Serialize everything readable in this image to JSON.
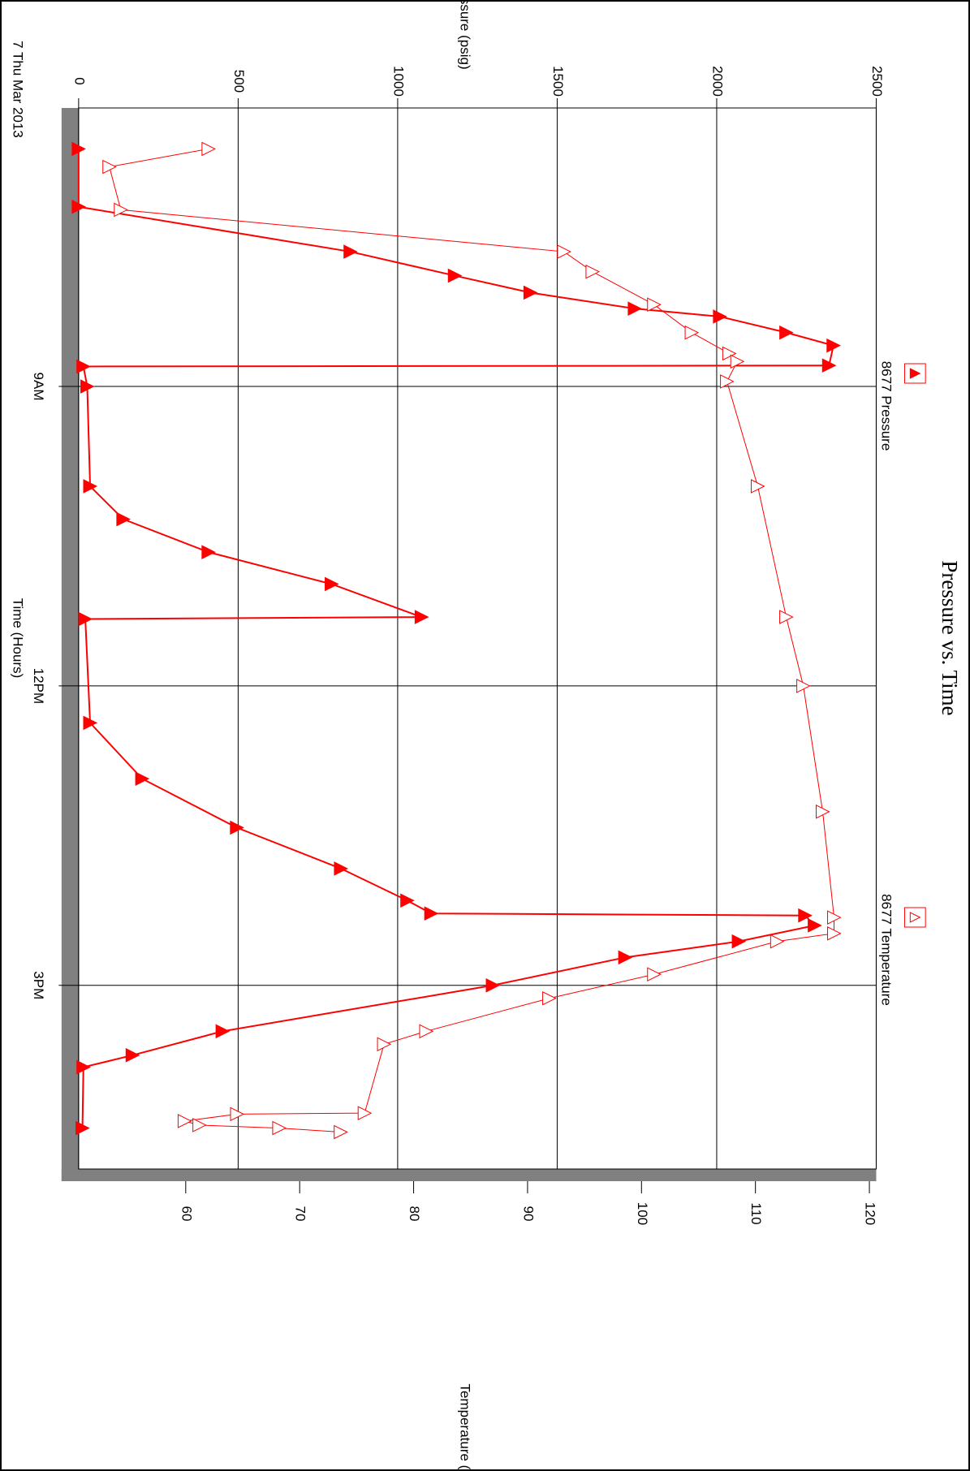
{
  "chart_data": {
    "type": "line",
    "title": "Pressure vs. Time",
    "date_label": "7 Thu Mar 2013",
    "x_label": "Time (Hours)",
    "y_label": "Pressure (psig)",
    "y2_label": "Temperature (deg F)",
    "xlim": [
      6.21,
      16.84
    ],
    "xticks": [
      {
        "value": 9,
        "label": "9AM"
      },
      {
        "value": 12,
        "label": "12PM"
      },
      {
        "value": 15,
        "label": "3PM"
      }
    ],
    "ylim": [
      0,
      2500
    ],
    "yticks": [
      0,
      500,
      1000,
      1500,
      2000,
      2500
    ],
    "y2lim": [
      50.6,
      120.6
    ],
    "y2ticks": [
      60,
      70,
      80,
      90,
      100,
      110,
      120
    ],
    "grid": true,
    "series": [
      {
        "name": "8677 Pressure",
        "color": "#ff0000",
        "filled": true,
        "x": [
          6.62,
          7.2,
          7.65,
          7.89,
          8.06,
          8.22,
          8.3,
          8.46,
          8.59,
          8.79,
          8.8,
          9.0,
          10.0,
          10.33,
          10.66,
          10.98,
          11.31,
          11.33,
          12.37,
          12.93,
          13.42,
          13.83,
          14.15,
          14.28,
          14.3,
          14.4,
          14.56,
          14.72,
          15.0,
          15.46,
          15.7,
          15.82,
          16.43
        ],
        "values": [
          0,
          0,
          852,
          1179,
          1416,
          1743,
          2010,
          2218,
          2366,
          2352,
          15,
          27,
          36,
          140,
          407,
          793,
          1075,
          21,
          36,
          199,
          496,
          822,
          1030,
          1105,
          2277,
          2307,
          2069,
          1713,
          1298,
          451,
          169,
          15,
          12
        ]
      },
      {
        "name": "8677 Temperature",
        "color": "#ff0000",
        "filled": false,
        "axis": "y2",
        "x": [
          6.62,
          6.8,
          7.23,
          7.65,
          7.85,
          8.18,
          8.46,
          8.67,
          8.75,
          8.95,
          10.0,
          11.31,
          12.0,
          13.26,
          14.32,
          14.48,
          14.56,
          14.89,
          15.13,
          15.46,
          15.59,
          16.28,
          16.29,
          16.36,
          16.4,
          16.43,
          16.47
        ],
        "values": [
          62.0,
          53.3,
          54.3,
          93.2,
          95.7,
          101.1,
          104.4,
          107.7,
          108.4,
          107.5,
          110.2,
          112.7,
          114.2,
          115.9,
          116.9,
          116.9,
          111.9,
          101.1,
          91.9,
          81.1,
          77.4,
          75.7,
          64.5,
          59.9,
          61.2,
          68.2,
          73.6
        ]
      }
    ]
  }
}
